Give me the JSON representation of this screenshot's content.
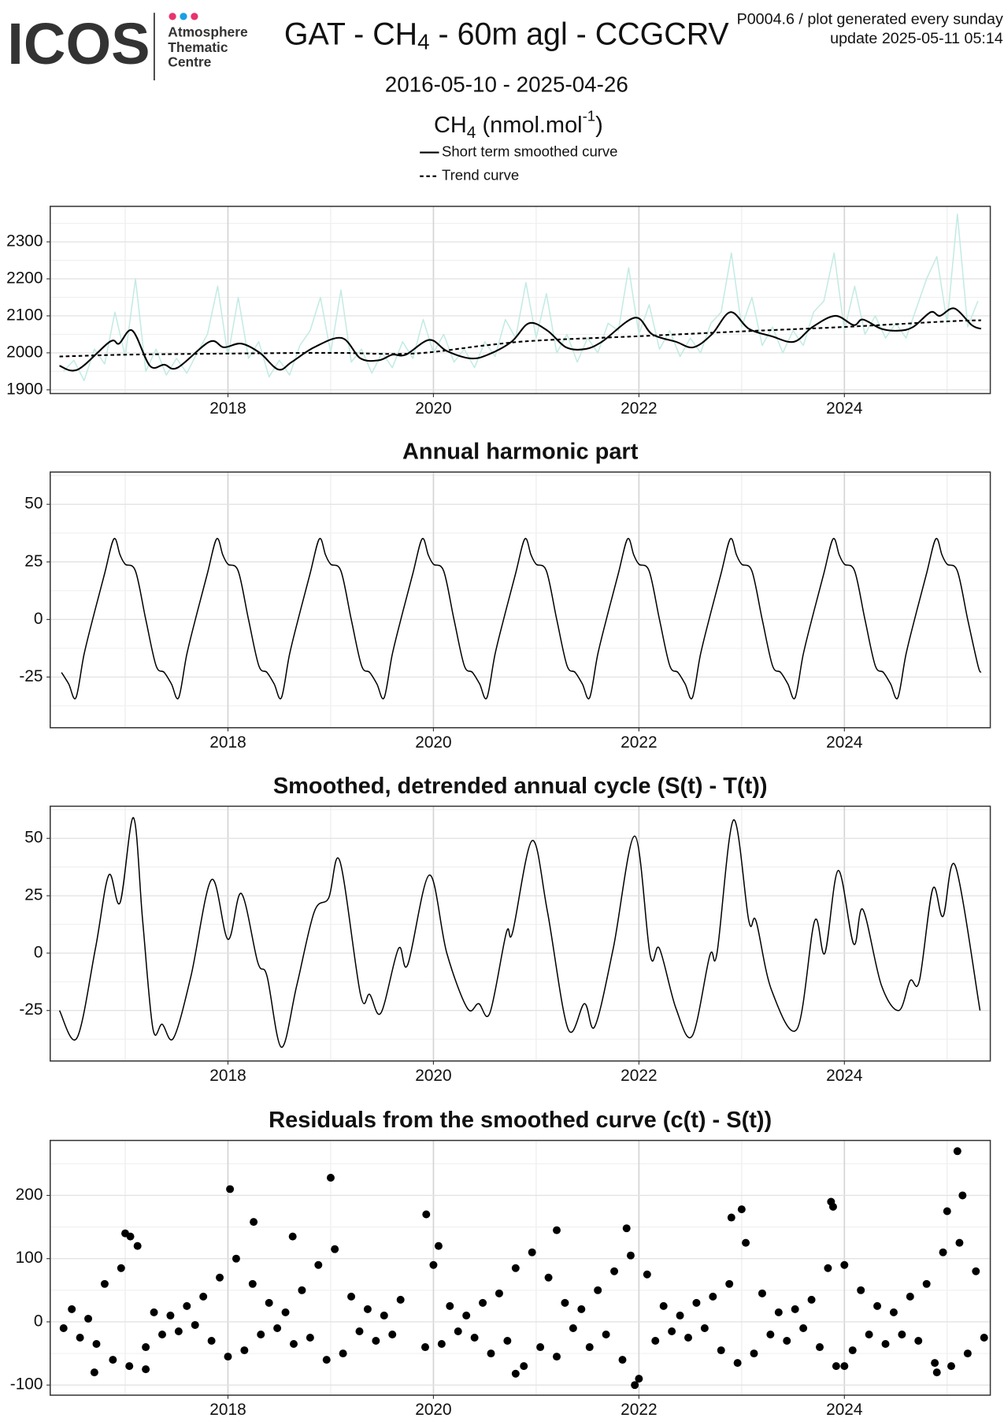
{
  "header": {
    "logo": "ICOS",
    "logo_lines": [
      "Atmosphere",
      "Thematic",
      "Centre"
    ],
    "title_parts": [
      "GAT - CH",
      "4",
      " - 60m agl - CCGCRV"
    ],
    "version": "P0004.6 / plot generated every sunday",
    "update": "update  2025-05-11 05:14",
    "period": "2016-05-10 - 2025-04-26"
  },
  "chart_data": [
    {
      "type": "line",
      "ylabel_parts": [
        "CH",
        "4",
        " (nmol.mol",
        "-1",
        ")"
      ],
      "xlim": [
        2016.27,
        2025.42
      ],
      "xticks": [
        2018,
        2020,
        2022,
        2024
      ],
      "xminorticks": [
        2017,
        2019,
        2021,
        2023,
        2025
      ],
      "ylim": [
        1890,
        2396
      ],
      "yticks": [
        1900,
        2000,
        2100,
        2200,
        2300
      ],
      "yminorticks": [
        1950,
        2050,
        2150,
        2250,
        2350
      ],
      "grid": true,
      "series": [
        {
          "color": "#c2ebe3",
          "x": [
            2016.4,
            2016.5,
            2016.6,
            2016.7,
            2016.8,
            2016.9,
            2017.0,
            2017.1,
            2017.2,
            2017.3,
            2017.4,
            2017.5,
            2017.6,
            2017.7,
            2017.8,
            2017.9,
            2018.0,
            2018.1,
            2018.2,
            2018.3,
            2018.4,
            2018.5,
            2018.6,
            2018.7,
            2018.8,
            2018.9,
            2019.0,
            2019.1,
            2019.2,
            2019.3,
            2019.4,
            2019.5,
            2019.6,
            2019.7,
            2019.8,
            2019.9,
            2020.0,
            2020.1,
            2020.2,
            2020.3,
            2020.4,
            2020.5,
            2020.6,
            2020.7,
            2020.8,
            2020.9,
            2021.0,
            2021.1,
            2021.2,
            2021.3,
            2021.4,
            2021.5,
            2021.6,
            2021.7,
            2021.8,
            2021.9,
            2022.0,
            2022.1,
            2022.2,
            2022.3,
            2022.4,
            2022.5,
            2022.6,
            2022.7,
            2022.8,
            2022.9,
            2023.0,
            2023.1,
            2023.2,
            2023.3,
            2023.4,
            2023.5,
            2023.6,
            2023.7,
            2023.8,
            2023.9,
            2024.0,
            2024.1,
            2024.2,
            2024.3,
            2024.4,
            2024.5,
            2024.6,
            2024.7,
            2024.8,
            2024.9,
            2025.0,
            2025.1,
            2025.2,
            2025.3
          ],
          "values": [
            1950,
            1980,
            1925,
            2010,
            1970,
            2110,
            1990,
            2200,
            1950,
            2010,
            1940,
            1985,
            1945,
            2000,
            2050,
            2180,
            1990,
            2150,
            1985,
            2030,
            1935,
            1980,
            1940,
            2020,
            2060,
            2150,
            2000,
            2170,
            1975,
            2010,
            1945,
            2000,
            1960,
            2030,
            1985,
            2090,
            2000,
            2050,
            1975,
            2010,
            1960,
            2030,
            1990,
            2090,
            2040,
            2190,
            2040,
            2160,
            2000,
            2050,
            1975,
            2040,
            2000,
            2080,
            2060,
            2230,
            2050,
            2130,
            2010,
            2060,
            1990,
            2040,
            2000,
            2080,
            2110,
            2270,
            2070,
            2150,
            2020,
            2070,
            2000,
            2060,
            2020,
            2110,
            2140,
            2270,
            2060,
            2180,
            2050,
            2100,
            2040,
            2080,
            2040,
            2120,
            2200,
            2260,
            2080,
            2375,
            2070,
            2140
          ]
        },
        {
          "name": "Short term smoothed curve",
          "color": "#000000",
          "smooth": true,
          "x": [
            2016.36,
            2016.54,
            2016.85,
            2016.94,
            2017.07,
            2017.24,
            2017.38,
            2017.51,
            2017.82,
            2017.96,
            2018.13,
            2018.31,
            2018.49,
            2018.62,
            2018.84,
            2019.11,
            2019.29,
            2019.47,
            2019.6,
            2019.73,
            2019.96,
            2020.13,
            2020.36,
            2020.53,
            2020.76,
            2020.93,
            2021.11,
            2021.29,
            2021.47,
            2021.64,
            2021.96,
            2022.13,
            2022.36,
            2022.53,
            2022.71,
            2022.89,
            2023.07,
            2023.29,
            2023.51,
            2023.69,
            2023.91,
            2024.09,
            2024.18,
            2024.36,
            2024.53,
            2024.67,
            2024.84,
            2024.93,
            2025.07,
            2025.24,
            2025.33
          ],
          "values": [
            1965,
            1955,
            2030,
            2025,
            2060,
            1965,
            1968,
            1960,
            2030,
            2015,
            2025,
            2000,
            1955,
            1975,
            2015,
            2040,
            1985,
            1980,
            1995,
            1995,
            2035,
            2005,
            1985,
            1995,
            2030,
            2080,
            2060,
            2015,
            2010,
            2030,
            2095,
            2050,
            2030,
            2015,
            2050,
            2110,
            2065,
            2045,
            2030,
            2070,
            2100,
            2075,
            2090,
            2065,
            2060,
            2070,
            2110,
            2100,
            2120,
            2075,
            2065
          ]
        },
        {
          "name": "Trend curve",
          "color": "#000000",
          "dashed": true,
          "smooth": true,
          "x": [
            2016.36,
            2017,
            2018,
            2019,
            2019.8,
            2020.5,
            2021,
            2022,
            2023,
            2024,
            2025,
            2025.33
          ],
          "values": [
            1990,
            1995,
            1998,
            2000,
            1998,
            2020,
            2033,
            2045,
            2058,
            2070,
            2085,
            2088
          ]
        }
      ]
    },
    {
      "type": "line",
      "title": "Annual harmonic part",
      "xlim": [
        2016.27,
        2025.42
      ],
      "xticks": [
        2018,
        2020,
        2022,
        2024
      ],
      "xminorticks": [
        2017,
        2019,
        2021,
        2023,
        2025
      ],
      "ylim": [
        -47,
        64
      ],
      "yticks": [
        -25,
        0,
        25,
        50
      ],
      "yminorticks": [
        -37.5,
        -12.5,
        12.5,
        37.5,
        62.5
      ],
      "grid": true,
      "series": [
        {
          "color": "#000000",
          "smooth": true,
          "x": [
            2016.38,
            2016.45,
            2016.52,
            2016.6,
            2016.7,
            2016.8,
            2016.89,
            2016.95,
            2017.0,
            2017.1,
            2017.2,
            2017.3,
            2017.38,
            2017.45,
            2017.52,
            2017.6,
            2017.7,
            2017.8,
            2017.89,
            2017.95,
            2018.0,
            2018.1,
            2018.2,
            2018.3,
            2018.38,
            2018.45,
            2018.52,
            2018.6,
            2018.7,
            2018.8,
            2018.89,
            2018.95,
            2019.0,
            2019.1,
            2019.2,
            2019.3,
            2019.38,
            2019.45,
            2019.52,
            2019.6,
            2019.7,
            2019.8,
            2019.89,
            2019.95,
            2020.0,
            2020.1,
            2020.2,
            2020.3,
            2020.38,
            2020.45,
            2020.52,
            2020.6,
            2020.7,
            2020.8,
            2020.89,
            2020.95,
            2021.0,
            2021.1,
            2021.2,
            2021.3,
            2021.38,
            2021.45,
            2021.52,
            2021.6,
            2021.7,
            2021.8,
            2021.89,
            2021.95,
            2022.0,
            2022.1,
            2022.2,
            2022.3,
            2022.38,
            2022.45,
            2022.52,
            2022.6,
            2022.7,
            2022.8,
            2022.89,
            2022.95,
            2023.0,
            2023.1,
            2023.2,
            2023.3,
            2023.38,
            2023.45,
            2023.52,
            2023.6,
            2023.7,
            2023.8,
            2023.89,
            2023.95,
            2024.0,
            2024.1,
            2024.2,
            2024.3,
            2024.38,
            2024.45,
            2024.52,
            2024.6,
            2024.7,
            2024.8,
            2024.89,
            2024.95,
            2025.0,
            2025.1,
            2025.2,
            2025.3,
            2025.33
          ],
          "values": [
            -23,
            -28,
            -34,
            -15,
            3,
            20,
            35,
            28,
            24,
            21,
            0,
            -20,
            -23,
            -28,
            -34,
            -15,
            3,
            20,
            35,
            28,
            24,
            21,
            0,
            -20,
            -23,
            -28,
            -34,
            -15,
            3,
            20,
            35,
            28,
            24,
            21,
            0,
            -20,
            -23,
            -28,
            -34,
            -15,
            3,
            20,
            35,
            28,
            24,
            21,
            0,
            -20,
            -23,
            -28,
            -34,
            -15,
            3,
            20,
            35,
            28,
            24,
            21,
            0,
            -20,
            -23,
            -28,
            -34,
            -15,
            3,
            20,
            35,
            28,
            24,
            21,
            0,
            -20,
            -23,
            -28,
            -34,
            -15,
            3,
            20,
            35,
            28,
            24,
            21,
            0,
            -20,
            -23,
            -28,
            -34,
            -15,
            3,
            20,
            35,
            28,
            24,
            21,
            0,
            -20,
            -23,
            -28,
            -34,
            -15,
            3,
            20,
            35,
            28,
            24,
            21,
            0,
            -20,
            -23
          ]
        }
      ]
    },
    {
      "type": "line",
      "title": "Smoothed, detrended annual cycle (S(t) - T(t))",
      "xlim": [
        2016.27,
        2025.42
      ],
      "xticks": [
        2018,
        2020,
        2022,
        2024
      ],
      "xminorticks": [
        2017,
        2019,
        2021,
        2023,
        2025
      ],
      "ylim": [
        -47,
        64
      ],
      "yticks": [
        -25,
        0,
        25,
        50
      ],
      "yminorticks": [
        -37.5,
        -12.5,
        12.5,
        37.5,
        62.5
      ],
      "grid": true,
      "series": [
        {
          "color": "#000000",
          "smooth": true,
          "x": [
            2016.36,
            2016.53,
            2016.71,
            2016.84,
            2016.95,
            2017.08,
            2017.17,
            2017.27,
            2017.36,
            2017.47,
            2017.64,
            2017.84,
            2018.0,
            2018.13,
            2018.29,
            2018.38,
            2018.52,
            2018.67,
            2018.84,
            2018.98,
            2019.09,
            2019.29,
            2019.38,
            2019.49,
            2019.66,
            2019.75,
            2019.96,
            2020.13,
            2020.33,
            2020.44,
            2020.55,
            2020.71,
            2020.77,
            2020.96,
            2021.11,
            2021.31,
            2021.47,
            2021.57,
            2021.75,
            2021.96,
            2022.11,
            2022.2,
            2022.36,
            2022.52,
            2022.69,
            2022.76,
            2022.92,
            2023.07,
            2023.14,
            2023.29,
            2023.54,
            2023.71,
            2023.81,
            2023.94,
            2024.09,
            2024.18,
            2024.36,
            2024.53,
            2024.64,
            2024.73,
            2024.86,
            2024.96,
            2025.08,
            2025.32
          ],
          "values": [
            -25,
            -37,
            2,
            34,
            22,
            59,
            14,
            -33,
            -31,
            -37,
            -10,
            32,
            6,
            26,
            -4,
            -10,
            -41,
            -14,
            18,
            24,
            40,
            -18,
            -18,
            -26,
            2,
            -5,
            34,
            0,
            -24,
            -22,
            -26,
            9,
            9,
            49,
            18,
            -33,
            -22,
            -32,
            2,
            51,
            -1,
            2,
            -24,
            -36,
            -1,
            0,
            58,
            14,
            14,
            -16,
            -33,
            14,
            0,
            36,
            4,
            19,
            -14,
            -25,
            -12,
            -12,
            28,
            16,
            38,
            -25
          ]
        }
      ]
    },
    {
      "type": "scatter",
      "title": "Residuals from the smoothed curve (c(t) - S(t))",
      "color": "#000000",
      "xlim": [
        2016.27,
        2025.42
      ],
      "xticks": [
        2018,
        2020,
        2022,
        2024
      ],
      "xminorticks": [
        2017,
        2019,
        2021,
        2023,
        2025
      ],
      "ylim": [
        -116,
        287
      ],
      "yticks": [
        -100,
        0,
        100,
        200
      ],
      "yminorticks": [
        -50,
        50,
        150,
        250
      ],
      "grid": true,
      "x": [
        2016.4,
        2016.48,
        2016.56,
        2016.64,
        2016.72,
        2016.8,
        2016.88,
        2016.96,
        2017.04,
        2017.12,
        2017.2,
        2017.28,
        2017.36,
        2017.44,
        2017.52,
        2017.6,
        2017.68,
        2017.76,
        2017.84,
        2017.92,
        2018.0,
        2018.08,
        2018.16,
        2018.24,
        2018.32,
        2018.4,
        2018.48,
        2018.56,
        2018.64,
        2018.72,
        2018.8,
        2018.88,
        2018.96,
        2019.04,
        2019.12,
        2019.2,
        2019.28,
        2019.36,
        2019.44,
        2019.52,
        2019.6,
        2019.68,
        2019.92,
        2020.0,
        2020.08,
        2020.16,
        2020.24,
        2020.32,
        2020.4,
        2020.48,
        2020.56,
        2020.64,
        2020.72,
        2020.8,
        2020.88,
        2020.96,
        2021.04,
        2021.12,
        2021.2,
        2021.28,
        2021.36,
        2021.44,
        2021.52,
        2021.6,
        2021.68,
        2021.76,
        2021.84,
        2021.92,
        2022.0,
        2022.08,
        2022.16,
        2022.24,
        2022.32,
        2022.4,
        2022.48,
        2022.56,
        2022.64,
        2022.72,
        2022.8,
        2022.88,
        2022.96,
        2023.04,
        2023.12,
        2023.2,
        2023.28,
        2023.36,
        2023.44,
        2023.52,
        2023.6,
        2023.68,
        2023.76,
        2023.84,
        2023.92,
        2024.0,
        2024.08,
        2024.16,
        2024.24,
        2024.32,
        2024.4,
        2024.48,
        2024.56,
        2024.64,
        2024.72,
        2024.8,
        2024.88,
        2024.96,
        2025.04,
        2025.12,
        2025.2,
        2025.28,
        2025.36,
        2018.02,
        2018.25,
        2018.63,
        2019.0,
        2019.93,
        2020.05,
        2021.2,
        2021.88,
        2022.9,
        2023.0,
        2023.87,
        2023.89,
        2025.0,
        2025.1,
        2025.15,
        2021.96,
        2020.8,
        2016.7,
        2017.2,
        2024.9,
        2024.0,
        2017.0,
        2017.05
      ],
      "values": [
        -10,
        20,
        -25,
        5,
        -35,
        60,
        -60,
        85,
        -70,
        120,
        -40,
        15,
        -20,
        10,
        -15,
        25,
        -5,
        40,
        -30,
        70,
        -55,
        100,
        -45,
        60,
        -20,
        30,
        -10,
        15,
        -35,
        50,
        -25,
        90,
        -60,
        115,
        -50,
        40,
        -15,
        20,
        -30,
        10,
        -20,
        35,
        -40,
        90,
        -35,
        25,
        -15,
        10,
        -25,
        30,
        -50,
        45,
        -30,
        85,
        -70,
        110,
        -40,
        70,
        -55,
        30,
        -10,
        20,
        -40,
        50,
        -20,
        80,
        -60,
        105,
        -90,
        75,
        -30,
        25,
        -15,
        10,
        -25,
        30,
        -10,
        40,
        -45,
        60,
        -65,
        125,
        -50,
        45,
        -20,
        15,
        -30,
        20,
        -10,
        35,
        -40,
        85,
        -70,
        90,
        -45,
        50,
        -20,
        25,
        -35,
        15,
        -20,
        40,
        -30,
        60,
        -65,
        110,
        -70,
        125,
        -50,
        80,
        -25,
        210,
        158,
        135,
        228,
        170,
        120,
        145,
        148,
        165,
        178,
        190,
        182,
        175,
        270,
        200,
        -100,
        -82,
        -80,
        -75,
        -80,
        -70,
        140,
        135
      ]
    }
  ]
}
